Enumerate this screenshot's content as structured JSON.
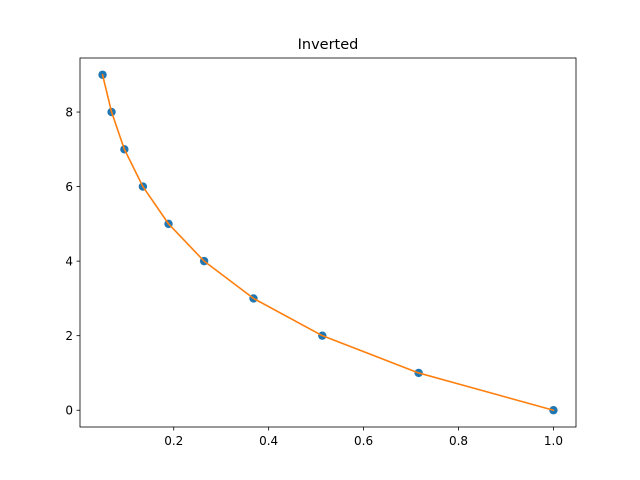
{
  "chart_data": {
    "type": "scatter",
    "title": "Inverted",
    "xlabel": "",
    "ylabel": "",
    "xlim": [
      0.0025,
      1.0475
    ],
    "ylim": [
      -0.45,
      9.45
    ],
    "xticks": [
      0.2,
      0.4,
      0.6,
      0.8,
      1.0
    ],
    "xtick_labels": [
      "0.2",
      "0.4",
      "0.6",
      "0.8",
      "1.0"
    ],
    "yticks": [
      0,
      2,
      4,
      6,
      8
    ],
    "ytick_labels": [
      "0",
      "2",
      "4",
      "6",
      "8"
    ],
    "grid": false,
    "series": [
      {
        "kind": "scatter",
        "color": "#1f77b4",
        "x": [
          0.05,
          0.069,
          0.096,
          0.135,
          0.189,
          0.264,
          0.368,
          0.513,
          0.716,
          1.0
        ],
        "y": [
          9,
          8,
          7,
          6,
          5,
          4,
          3,
          2,
          1,
          0
        ]
      },
      {
        "kind": "line",
        "color": "#ff7f0e",
        "x": [
          0.05,
          0.069,
          0.096,
          0.135,
          0.189,
          0.264,
          0.368,
          0.513,
          0.716,
          1.0
        ],
        "y": [
          9,
          8,
          7,
          6,
          5,
          4,
          3,
          2,
          1,
          0
        ]
      }
    ]
  }
}
